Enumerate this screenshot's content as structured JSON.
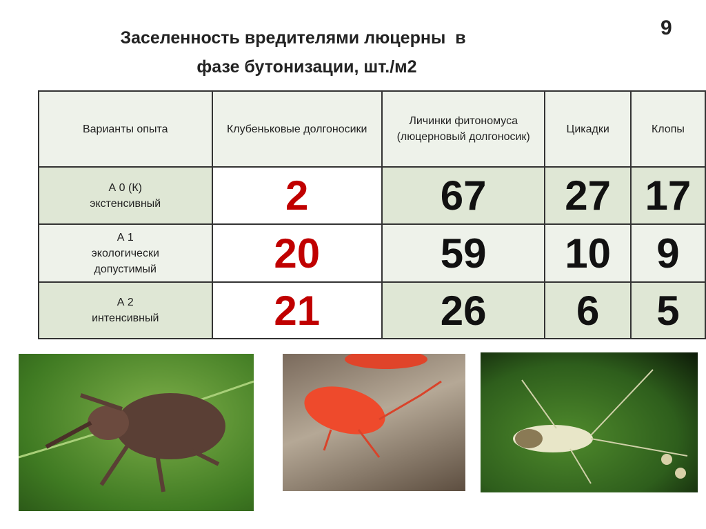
{
  "slide": {
    "title_line1": "Заселенность вредителями люцерны  в",
    "title_line2": "фазе бутонизации, шт./м2",
    "page_number": "9"
  },
  "table": {
    "headers": [
      "Варианты  опыта",
      "Клубеньковые долгоносики",
      "Личинки фитономуса (люцерновый долгоносик)",
      "Цикадки",
      "Клопы"
    ],
    "rows": [
      {
        "variant_line1": "А 0 (К)",
        "variant_line2": "экстенсивный",
        "values": [
          "2",
          "67",
          "27",
          "17"
        ]
      },
      {
        "variant_line1": "А 1",
        "variant_line2": "экологически допустимый",
        "values": [
          "20",
          "59",
          "10",
          "9"
        ]
      },
      {
        "variant_line1": "А 2",
        "variant_line2": "интенсивный",
        "values": [
          "21",
          "26",
          "6",
          "5"
        ]
      }
    ],
    "colors": {
      "highlight_column": "#c00000",
      "row_dark": "#dfe7d5",
      "row_light": "#eef2ea"
    }
  },
  "photos": [
    "weevil-photo",
    "red-bug-photo",
    "green-bug-photo"
  ]
}
